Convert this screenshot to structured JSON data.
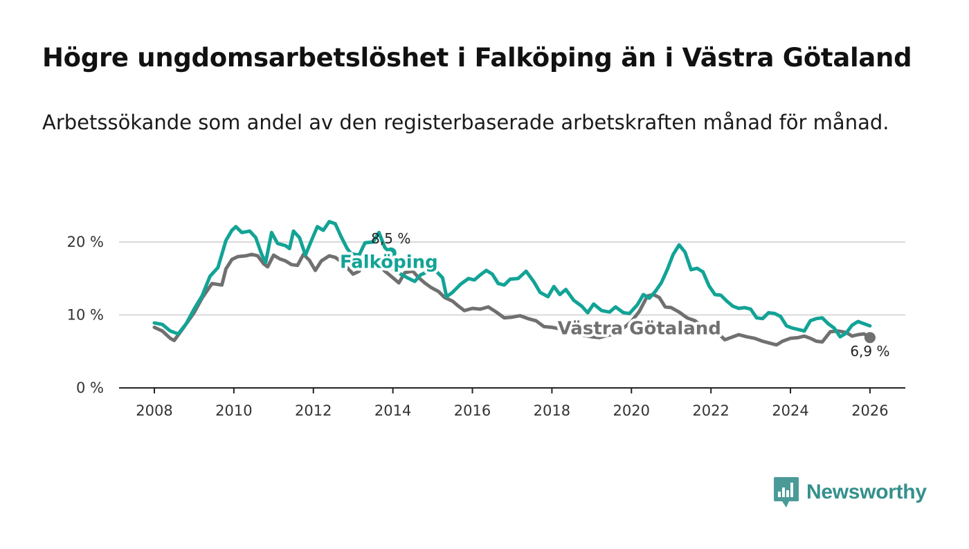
{
  "header": {
    "title": "Högre ungdomsarbetslöshet i Falköping än i Västra Götaland",
    "subtitle": "Arbetssökande som andel av den registerbaserade arbetskraften månad för månad."
  },
  "brand": {
    "name": "Newsworthy",
    "logo_icon": "newsworthy-logo-icon"
  },
  "colors": {
    "falkoping": "#12a396",
    "vastra": "#707070",
    "grid": "#d9d9d9",
    "axis": "#222222",
    "text": "#111111",
    "brand": "#35908c"
  },
  "chart_data": {
    "type": "line",
    "title": "Högre ungdomsarbetslöshet i Falköping än i Västra Götaland",
    "subtitle": "Arbetssökande som andel av den registerbaserade arbetskraften månad för månad.",
    "xlabel": "",
    "ylabel": "",
    "xlim": [
      2007.1,
      2026.9
    ],
    "ylim": [
      0,
      23
    ],
    "x_ticks": [
      2008,
      2010,
      2012,
      2014,
      2016,
      2018,
      2020,
      2022,
      2024,
      2026
    ],
    "x_tick_labels": [
      "2008",
      "2010",
      "2012",
      "2014",
      "2016",
      "2018",
      "2020",
      "2022",
      "2024",
      "2026"
    ],
    "y_ticks": [
      0,
      10,
      20
    ],
    "y_tick_labels": [
      "0 %",
      "10 %",
      "20 %"
    ],
    "grid": true,
    "series": [
      {
        "name": "Falköping",
        "color": "#12a396",
        "end_label": "8,5 %",
        "points": [
          [
            2008.0,
            8.9
          ],
          [
            2008.2,
            8.7
          ],
          [
            2008.4,
            7.8
          ],
          [
            2008.6,
            7.4
          ],
          [
            2008.8,
            8.8
          ],
          [
            2009.0,
            10.8
          ],
          [
            2009.2,
            12.6
          ],
          [
            2009.4,
            15.3
          ],
          [
            2009.6,
            16.5
          ],
          [
            2009.8,
            20.2
          ],
          [
            2009.95,
            21.6
          ],
          [
            2010.05,
            22.1
          ],
          [
            2010.2,
            21.3
          ],
          [
            2010.4,
            21.5
          ],
          [
            2010.55,
            20.6
          ],
          [
            2010.7,
            18.3
          ],
          [
            2010.8,
            17.2
          ],
          [
            2010.95,
            21.3
          ],
          [
            2011.1,
            19.8
          ],
          [
            2011.3,
            19.5
          ],
          [
            2011.4,
            19.1
          ],
          [
            2011.5,
            21.5
          ],
          [
            2011.65,
            20.6
          ],
          [
            2011.8,
            18.2
          ],
          [
            2011.95,
            20.2
          ],
          [
            2012.1,
            22.1
          ],
          [
            2012.25,
            21.6
          ],
          [
            2012.4,
            22.8
          ],
          [
            2012.55,
            22.5
          ],
          [
            2012.7,
            20.7
          ],
          [
            2012.85,
            19.1
          ],
          [
            2012.95,
            18.4
          ],
          [
            2013.15,
            18.2
          ],
          [
            2013.3,
            19.9
          ],
          [
            2013.5,
            20.0
          ],
          [
            2013.65,
            21.3
          ],
          [
            2013.8,
            19.2
          ],
          [
            2013.95,
            18.5
          ]
        ]
      },
      {
        "name": "Västra Götaland",
        "color": "#707070",
        "end_label": "6,9 %",
        "points": [
          [
            2008.0,
            8.3
          ],
          [
            2008.2,
            7.8
          ],
          [
            2008.4,
            6.8
          ],
          [
            2008.5,
            6.5
          ],
          [
            2008.7,
            8.0
          ],
          [
            2009.0,
            10.3
          ],
          [
            2009.2,
            12.3
          ],
          [
            2009.45,
            14.3
          ],
          [
            2009.7,
            14.1
          ],
          [
            2009.8,
            16.3
          ],
          [
            2009.95,
            17.6
          ],
          [
            2010.1,
            18.0
          ],
          [
            2010.3,
            18.1
          ],
          [
            2010.45,
            18.3
          ],
          [
            2010.6,
            18.1
          ],
          [
            2010.75,
            17.0
          ],
          [
            2010.85,
            16.6
          ],
          [
            2011.0,
            18.2
          ],
          [
            2011.15,
            17.7
          ],
          [
            2011.3,
            17.4
          ],
          [
            2011.45,
            16.9
          ],
          [
            2011.6,
            16.8
          ],
          [
            2011.75,
            18.3
          ],
          [
            2011.9,
            17.5
          ],
          [
            2012.05,
            16.1
          ],
          [
            2012.2,
            17.4
          ],
          [
            2012.4,
            18.1
          ],
          [
            2012.55,
            17.9
          ],
          [
            2012.7,
            17.3
          ],
          [
            2012.85,
            16.5
          ],
          [
            2013.0,
            15.6
          ],
          [
            2013.15,
            16.0
          ],
          [
            2013.3,
            17.4
          ],
          [
            2013.5,
            17.3
          ],
          [
            2013.65,
            16.8
          ],
          [
            2013.8,
            16.0
          ],
          [
            2014.0,
            15.1
          ],
          [
            2014.15,
            14.4
          ],
          [
            2014.3,
            15.8
          ],
          [
            2014.5,
            16.0
          ],
          [
            2014.65,
            15.1
          ],
          [
            2014.8,
            14.4
          ],
          [
            2014.95,
            13.8
          ],
          [
            2015.15,
            13.2
          ],
          [
            2015.3,
            12.4
          ],
          [
            2015.5,
            11.9
          ],
          [
            2015.65,
            11.2
          ],
          [
            2015.8,
            10.6
          ],
          [
            2016.0,
            10.9
          ],
          [
            2016.2,
            10.8
          ],
          [
            2016.4,
            11.1
          ],
          [
            2016.6,
            10.4
          ],
          [
            2016.8,
            9.6
          ],
          [
            2017.0,
            9.7
          ],
          [
            2017.2,
            9.9
          ],
          [
            2017.4,
            9.5
          ],
          [
            2017.6,
            9.2
          ],
          [
            2017.8,
            8.4
          ],
          [
            2018.0,
            8.3
          ],
          [
            2018.2,
            8.1
          ],
          [
            2018.4,
            7.8
          ],
          [
            2018.6,
            7.6
          ],
          [
            2018.8,
            7.2
          ],
          [
            2019.0,
            7.0
          ],
          [
            2019.2,
            6.9
          ],
          [
            2019.4,
            7.2
          ],
          [
            2019.6,
            7.4
          ],
          [
            2019.8,
            8.2
          ],
          [
            2020.0,
            9.1
          ],
          [
            2020.2,
            10.5
          ],
          [
            2020.4,
            12.6
          ],
          [
            2020.55,
            12.8
          ],
          [
            2020.7,
            12.4
          ],
          [
            2020.85,
            11.1
          ],
          [
            2021.0,
            11.0
          ],
          [
            2021.2,
            10.4
          ],
          [
            2021.4,
            9.6
          ],
          [
            2021.6,
            9.2
          ],
          [
            2021.8,
            8.3
          ],
          [
            2022.0,
            7.8
          ],
          [
            2022.2,
            7.4
          ],
          [
            2022.35,
            6.6
          ],
          [
            2022.5,
            6.9
          ],
          [
            2022.7,
            7.3
          ],
          [
            2022.9,
            7.0
          ],
          [
            2023.1,
            6.8
          ],
          [
            2023.3,
            6.4
          ],
          [
            2023.5,
            6.1
          ],
          [
            2023.65,
            5.9
          ],
          [
            2023.8,
            6.4
          ],
          [
            2024.0,
            6.8
          ],
          [
            2024.2,
            6.9
          ],
          [
            2024.35,
            7.1
          ],
          [
            2024.5,
            6.8
          ],
          [
            2024.65,
            6.4
          ],
          [
            2024.8,
            6.3
          ],
          [
            2025.0,
            7.7
          ],
          [
            2025.2,
            7.8
          ],
          [
            2025.4,
            7.6
          ],
          [
            2025.55,
            7.1
          ],
          [
            2025.7,
            7.3
          ],
          [
            2025.85,
            7.4
          ],
          [
            2026.0,
            6.9
          ]
        ]
      },
      {
        "name": "Falköping",
        "color": "#12a396",
        "points": [
          [
            2014.0,
            16.3
          ],
          [
            2014.2,
            15.6
          ],
          [
            2014.4,
            15.0
          ],
          [
            2014.55,
            14.6
          ],
          [
            2014.7,
            15.5
          ],
          [
            2014.9,
            16.0
          ],
          [
            2015.05,
            16.2
          ],
          [
            2015.25,
            15.1
          ],
          [
            2015.35,
            12.5
          ],
          [
            2015.5,
            13.1
          ],
          [
            2015.7,
            14.2
          ],
          [
            2015.9,
            15.0
          ],
          [
            2016.05,
            14.8
          ],
          [
            2016.2,
            15.5
          ],
          [
            2016.35,
            16.1
          ],
          [
            2016.5,
            15.6
          ],
          [
            2016.65,
            14.3
          ],
          [
            2016.8,
            14.1
          ],
          [
            2016.95,
            14.9
          ],
          [
            2017.15,
            15.0
          ],
          [
            2017.35,
            16.0
          ],
          [
            2017.55,
            14.5
          ],
          [
            2017.7,
            13.1
          ],
          [
            2017.9,
            12.5
          ],
          [
            2018.05,
            13.9
          ],
          [
            2018.2,
            12.8
          ],
          [
            2018.35,
            13.5
          ],
          [
            2018.55,
            12.0
          ],
          [
            2018.75,
            11.2
          ],
          [
            2018.9,
            10.3
          ],
          [
            2019.05,
            11.5
          ],
          [
            2019.25,
            10.6
          ],
          [
            2019.45,
            10.4
          ],
          [
            2019.6,
            11.1
          ],
          [
            2019.8,
            10.3
          ],
          [
            2019.95,
            10.2
          ],
          [
            2020.15,
            11.4
          ],
          [
            2020.3,
            12.8
          ],
          [
            2020.45,
            12.3
          ],
          [
            2020.6,
            13.2
          ],
          [
            2020.75,
            14.4
          ],
          [
            2020.9,
            16.2
          ],
          [
            2021.05,
            18.3
          ],
          [
            2021.2,
            19.6
          ],
          [
            2021.35,
            18.6
          ],
          [
            2021.5,
            16.2
          ],
          [
            2021.65,
            16.4
          ],
          [
            2021.8,
            15.9
          ],
          [
            2021.95,
            14.0
          ],
          [
            2022.1,
            12.8
          ],
          [
            2022.25,
            12.7
          ],
          [
            2022.4,
            11.9
          ],
          [
            2022.55,
            11.2
          ],
          [
            2022.7,
            10.9
          ],
          [
            2022.85,
            11.0
          ],
          [
            2023.0,
            10.8
          ],
          [
            2023.15,
            9.6
          ],
          [
            2023.3,
            9.5
          ],
          [
            2023.45,
            10.3
          ],
          [
            2023.6,
            10.2
          ],
          [
            2023.75,
            9.8
          ],
          [
            2023.9,
            8.5
          ],
          [
            2024.05,
            8.2
          ],
          [
            2024.2,
            8.0
          ],
          [
            2024.35,
            7.8
          ],
          [
            2024.5,
            9.2
          ],
          [
            2024.65,
            9.5
          ],
          [
            2024.8,
            9.6
          ],
          [
            2024.95,
            8.8
          ],
          [
            2025.1,
            8.2
          ],
          [
            2025.25,
            7.0
          ],
          [
            2025.4,
            7.5
          ],
          [
            2025.55,
            8.6
          ],
          [
            2025.7,
            9.1
          ],
          [
            2025.85,
            8.8
          ],
          [
            2026.0,
            8.5
          ]
        ]
      }
    ],
    "annotations": [
      {
        "text": "Falköping",
        "series": "Falköping",
        "x": 2013.9,
        "y": 17.3
      },
      {
        "text": "Västra Götaland",
        "series": "Västra Götaland",
        "x": 2020.2,
        "y": 8.2
      }
    ]
  }
}
